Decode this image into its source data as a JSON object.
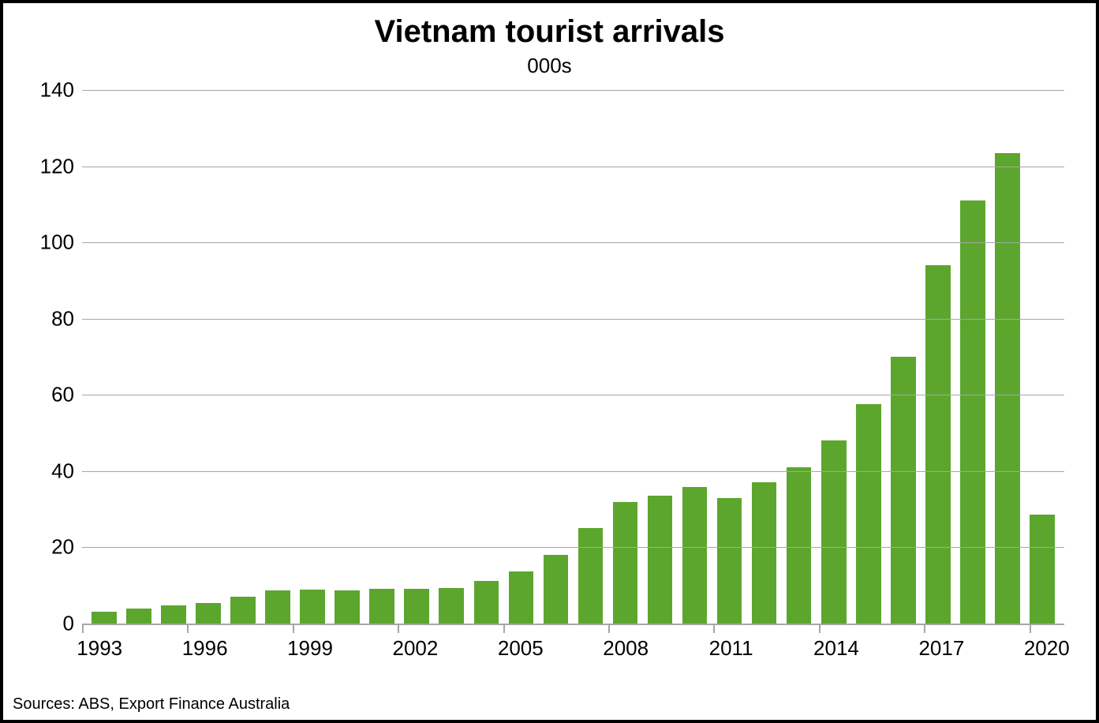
{
  "chart": {
    "type": "bar",
    "title": "Vietnam tourist arrivals",
    "subtitle": "000s",
    "title_fontsize": 40,
    "subtitle_fontsize": 26,
    "tick_fontsize": 26,
    "source_fontsize": 20,
    "background_color": "#ffffff",
    "border_color": "#000000",
    "grid_color": "#a6a6a6",
    "bar_color": "#5ca62d",
    "text_color": "#000000",
    "ylim": [
      0,
      140
    ],
    "ytick_step": 20,
    "yticks": [
      0,
      20,
      40,
      60,
      80,
      100,
      120,
      140
    ],
    "years": [
      1993,
      1994,
      1995,
      1996,
      1997,
      1998,
      1999,
      2000,
      2001,
      2002,
      2003,
      2004,
      2005,
      2006,
      2007,
      2008,
      2009,
      2010,
      2011,
      2012,
      2013,
      2014,
      2015,
      2016,
      2017,
      2018,
      2019,
      2020
    ],
    "values": [
      3.2,
      4.0,
      4.8,
      5.4,
      7.0,
      8.6,
      9.0,
      8.8,
      9.2,
      9.2,
      9.4,
      11.2,
      13.6,
      18.0,
      25.0,
      31.8,
      33.6,
      35.8,
      33.0,
      37.0,
      41.0,
      48.0,
      57.5,
      70.0,
      94.0,
      111.0,
      123.5,
      28.5
    ],
    "xtick_years": [
      1993,
      1996,
      1999,
      2002,
      2005,
      2008,
      2011,
      2014,
      2017,
      2020
    ],
    "source": "Sources: ABS, Export Finance Australia",
    "bar_width_ratio": 0.72
  }
}
